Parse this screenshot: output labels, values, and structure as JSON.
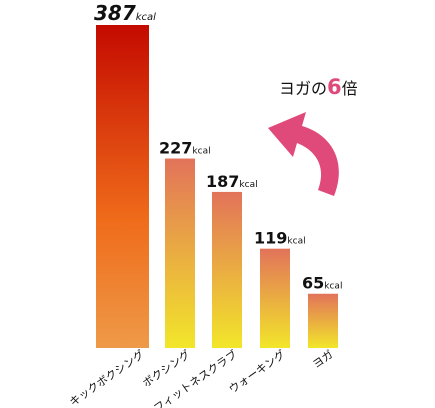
{
  "chart_data": {
    "type": "bar",
    "categories": [
      "キックボクシング",
      "ボクシング",
      "フィットネスクラブ",
      "ウォーキング",
      "ヨガ"
    ],
    "values": [
      387,
      227,
      187,
      119,
      65
    ],
    "unit": "kcal",
    "value_labels": [
      "387",
      "227",
      "187",
      "119",
      "65"
    ],
    "title": "",
    "xlabel": "",
    "ylabel": "",
    "ylim": [
      0,
      387
    ],
    "grid": false,
    "legend": "none",
    "annotation": {
      "prefix": "ヨガの",
      "number": "6",
      "suffix": "倍",
      "icon": "curved-arrow-up-left-icon"
    },
    "colors": {
      "first_bar_top": "#c40a00",
      "first_bar_mid": "#ef6b1a",
      "first_bar_bottom": "#ee9a48",
      "bar_top": "#e2735a",
      "bar_bottom": "#f2e62a",
      "arrow": "#e04a7a",
      "highlight_number": "#e04a7a",
      "text": "#111111"
    }
  }
}
